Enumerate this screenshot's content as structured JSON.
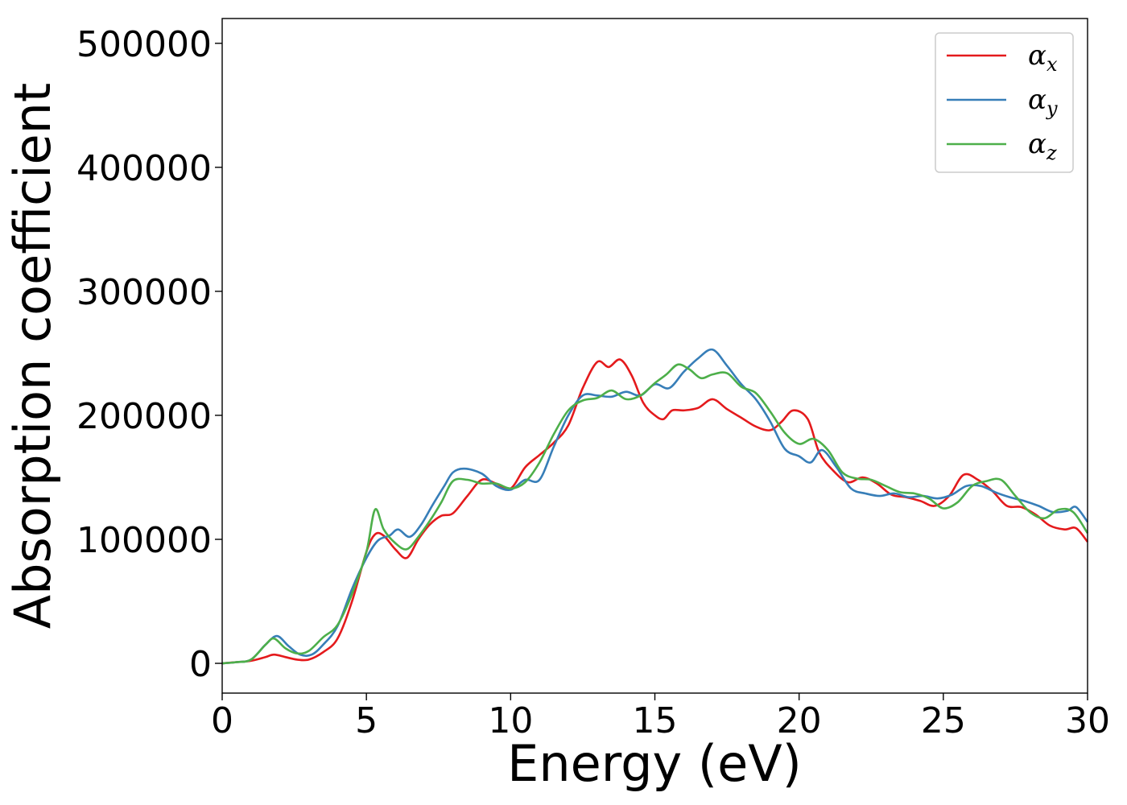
{
  "chart_data": {
    "type": "line",
    "title": "",
    "xlabel": "Energy (eV)",
    "ylabel": "Absorption coefficient",
    "xlim": [
      0,
      30
    ],
    "ylim": [
      -24000,
      520000
    ],
    "xticks": [
      "0",
      "5",
      "10",
      "15",
      "20",
      "25",
      "30"
    ],
    "yticks": [
      "0",
      "100000",
      "200000",
      "300000",
      "400000",
      "500000"
    ],
    "grid": false,
    "legend_position": "top-right",
    "series": [
      {
        "name": "α",
        "subscript": "x",
        "color": "#e41a1c",
        "x": [
          0,
          0.5,
          1,
          1.5,
          1.8,
          2.2,
          2.6,
          3,
          3.5,
          4,
          4.5,
          5,
          5.3,
          5.6,
          6,
          6.4,
          6.8,
          7.2,
          7.6,
          8,
          8.5,
          9,
          9.5,
          10,
          10.5,
          11,
          11.5,
          12,
          12.5,
          13,
          13.4,
          13.8,
          14.2,
          14.6,
          15,
          15.3,
          15.6,
          16,
          16.5,
          17,
          17.5,
          18,
          18.5,
          19,
          19.4,
          19.8,
          20.3,
          20.7,
          21.2,
          21.7,
          22.2,
          22.7,
          23.2,
          23.7,
          24.2,
          24.7,
          25.2,
          25.7,
          26.2,
          26.7,
          27.2,
          27.7,
          28.2,
          28.7,
          29.2,
          29.6,
          30
        ],
        "y": [
          0,
          1000,
          2000,
          5000,
          7000,
          5000,
          3000,
          3000,
          9000,
          20000,
          50000,
          90000,
          104000,
          103000,
          92000,
          85000,
          100000,
          112000,
          119000,
          121000,
          135000,
          148000,
          145000,
          141000,
          158000,
          168000,
          178000,
          192000,
          222000,
          243000,
          239000,
          245000,
          232000,
          210000,
          200000,
          197000,
          204000,
          204000,
          206000,
          213000,
          205000,
          198000,
          191000,
          188000,
          195000,
          204000,
          197000,
          170000,
          155000,
          146000,
          150000,
          145000,
          136000,
          134000,
          131000,
          127000,
          135000,
          152000,
          148000,
          139000,
          127000,
          126000,
          120000,
          111000,
          108000,
          109000,
          98000
        ]
      },
      {
        "name": "α",
        "subscript": "y",
        "color": "#377eb8",
        "x": [
          0,
          0.5,
          1,
          1.5,
          1.9,
          2.3,
          2.7,
          3.1,
          3.5,
          4,
          4.5,
          5,
          5.4,
          5.8,
          6.1,
          6.5,
          6.9,
          7.3,
          7.7,
          8,
          8.4,
          9,
          9.5,
          10,
          10.5,
          11,
          11.5,
          12,
          12.5,
          13,
          13.5,
          14,
          14.5,
          15,
          15.5,
          16,
          16.5,
          17,
          17.5,
          18,
          18.5,
          19,
          19.5,
          20,
          20.4,
          20.8,
          21.3,
          21.8,
          22.3,
          22.8,
          23.3,
          23.8,
          24.3,
          24.8,
          25.3,
          25.8,
          26.3,
          26.8,
          27.3,
          27.8,
          28.3,
          28.8,
          29.3,
          29.6,
          30
        ],
        "y": [
          0,
          1000,
          3000,
          15000,
          22000,
          14000,
          7000,
          7000,
          15000,
          30000,
          60000,
          85000,
          99000,
          103000,
          108000,
          102000,
          112000,
          128000,
          143000,
          154000,
          157000,
          153000,
          143000,
          140000,
          148000,
          148000,
          175000,
          200000,
          216000,
          216000,
          215000,
          219000,
          216000,
          225000,
          222000,
          235000,
          246000,
          253000,
          240000,
          225000,
          213000,
          195000,
          173000,
          167000,
          162000,
          172000,
          158000,
          141000,
          137000,
          135000,
          137000,
          134000,
          135000,
          133000,
          136000,
          143000,
          143000,
          138000,
          134000,
          131000,
          127000,
          122000,
          123000,
          126000,
          114000
        ]
      },
      {
        "name": "α",
        "subscript": "z",
        "color": "#4daf4a",
        "x": [
          0,
          0.5,
          1,
          1.5,
          1.8,
          2.2,
          2.6,
          3,
          3.5,
          4,
          4.5,
          5,
          5.3,
          5.6,
          6,
          6.4,
          6.8,
          7.2,
          7.6,
          8,
          8.5,
          9,
          9.5,
          10,
          10.5,
          11,
          11.5,
          12,
          12.5,
          13,
          13.5,
          14,
          14.5,
          15,
          15.4,
          15.8,
          16.2,
          16.6,
          17,
          17.5,
          18,
          18.5,
          19,
          19.5,
          20,
          20.5,
          21,
          21.5,
          22,
          22.5,
          23,
          23.5,
          24,
          24.5,
          25,
          25.5,
          26,
          26.5,
          27,
          27.5,
          28,
          28.5,
          29,
          29.5,
          30
        ],
        "y": [
          0,
          1000,
          3000,
          15000,
          20000,
          12000,
          8000,
          10000,
          21000,
          31000,
          56000,
          90000,
          124000,
          108000,
          97000,
          92000,
          102000,
          115000,
          130000,
          147000,
          148000,
          145000,
          145000,
          141000,
          146000,
          162000,
          185000,
          204000,
          212000,
          214000,
          220000,
          213000,
          216000,
          226000,
          233000,
          241000,
          237000,
          230000,
          233000,
          234000,
          223000,
          218000,
          203000,
          186000,
          177000,
          181000,
          172000,
          154000,
          149000,
          148000,
          143000,
          138000,
          137000,
          133000,
          125000,
          130000,
          143000,
          147000,
          148000,
          135000,
          122000,
          117000,
          124000,
          122000,
          105000
        ]
      }
    ]
  }
}
